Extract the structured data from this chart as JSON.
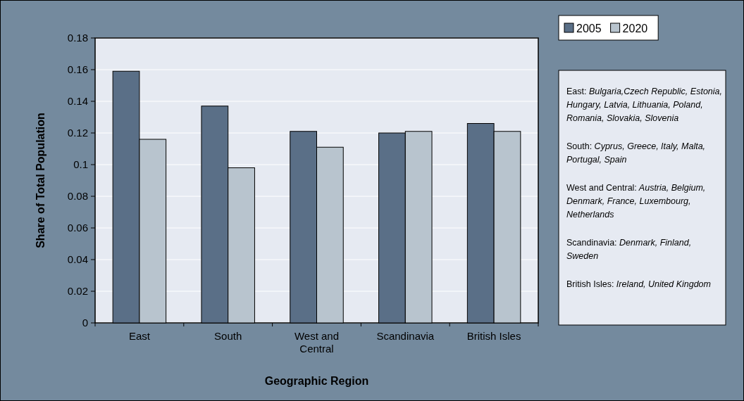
{
  "chart_data": {
    "type": "bar",
    "xlabel": "Geographic Region",
    "ylabel": "Share of Total Population",
    "categories": [
      "East",
      "South",
      "West and Central",
      "Scandinavia",
      "British Isles"
    ],
    "series": [
      {
        "name": "2005",
        "color": "#5a6f87",
        "values": [
          0.159,
          0.137,
          0.121,
          0.12,
          0.126
        ]
      },
      {
        "name": "2020",
        "color": "#b8c4ce",
        "values": [
          0.116,
          0.098,
          0.111,
          0.121,
          0.121
        ]
      }
    ],
    "ylim": [
      0,
      0.18
    ],
    "yticks": [
      0,
      0.02,
      0.04,
      0.06,
      0.08,
      0.1,
      0.12,
      0.14,
      0.16,
      0.18
    ],
    "grid": "y",
    "legend": "top right",
    "annotations": [
      "East: Bulgaria,Czech Republic, Estonia, Hungary, Latvia, Lithuania, Poland, Romania, Slovakia, Slovenia",
      "South: Cyprus, Greece, Italy, Malta, Portugal, Spain",
      "West and Central: Austria, Belgium, Denmark, France, Luxembourg, Netherlands",
      "Scandinavia: Denmark, Finland, Sweden",
      "British Isles: Ireland, United Kingdom"
    ]
  }
}
